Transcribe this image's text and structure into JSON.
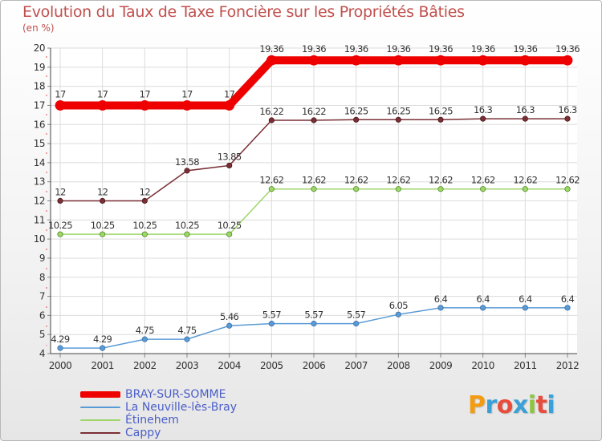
{
  "title": "Evolution du Taux de Taxe Foncière sur les Propriétés Bâties",
  "unit_label": "(en %)",
  "logo_text": "Proxiti",
  "chart_data": {
    "type": "line",
    "title": "Evolution du Taux de Taxe Foncière sur les Propriétés Bâties",
    "ylabel": "(en %)",
    "xlabel": "",
    "ylim": [
      4,
      20
    ],
    "yticks": [
      "4",
      "5",
      "6",
      "7",
      "8",
      "9",
      "10",
      "11",
      "12",
      "13",
      "14",
      "15",
      "16",
      "17",
      "18",
      "19",
      "20"
    ],
    "categories": [
      "2000",
      "2001",
      "2002",
      "2003",
      "2004",
      "2005",
      "2006",
      "2007",
      "2008",
      "2009",
      "2010",
      "2011",
      "2012"
    ],
    "series": [
      {
        "name": "BRAY-SUR-SOMME",
        "color": "#ee0000",
        "values": [
          17,
          17,
          17,
          17,
          17,
          19.36,
          19.36,
          19.36,
          19.36,
          19.36,
          19.36,
          19.36,
          19.36
        ],
        "labels": [
          "17",
          "17",
          "17",
          "17",
          "17",
          "19.36",
          "19.36",
          "19.36",
          "19.36",
          "19.36",
          "19.36",
          "19.36",
          "19.36"
        ]
      },
      {
        "name": "La Neuville-lès-Bray",
        "color": "#5b9bd5",
        "values": [
          4.29,
          4.29,
          4.75,
          4.75,
          5.46,
          5.57,
          5.57,
          5.57,
          6.05,
          6.4,
          6.4,
          6.4,
          6.4
        ],
        "labels": [
          "4.29",
          "4.29",
          "4.75",
          "4.75",
          "5.46",
          "5.57",
          "5.57",
          "5.57",
          "6.05",
          "6.4",
          "6.4",
          "6.4",
          "6.4"
        ]
      },
      {
        "name": "Étinehem",
        "color": "#9ed66a",
        "values": [
          10.25,
          10.25,
          10.25,
          10.25,
          10.25,
          12.62,
          12.62,
          12.62,
          12.62,
          12.62,
          12.62,
          12.62,
          12.62
        ],
        "labels": [
          "10.25",
          "10.25",
          "10.25",
          "10.25",
          "10.25",
          "12.62",
          "12.62",
          "12.62",
          "12.62",
          "12.62",
          "12.62",
          "12.62",
          "12.62"
        ]
      },
      {
        "name": "Cappy",
        "color": "#7a2f35",
        "values": [
          12,
          12,
          12,
          13.58,
          13.85,
          16.22,
          16.22,
          16.25,
          16.25,
          16.25,
          16.3,
          16.3,
          16.3
        ],
        "labels": [
          "12",
          "12",
          "12",
          "13.58",
          "13.85",
          "16.22",
          "16.22",
          "16.25",
          "16.25",
          "16.25",
          "16.3",
          "16.3",
          "16.3"
        ]
      }
    ],
    "legend_position": "bottom-left",
    "grid": true
  }
}
